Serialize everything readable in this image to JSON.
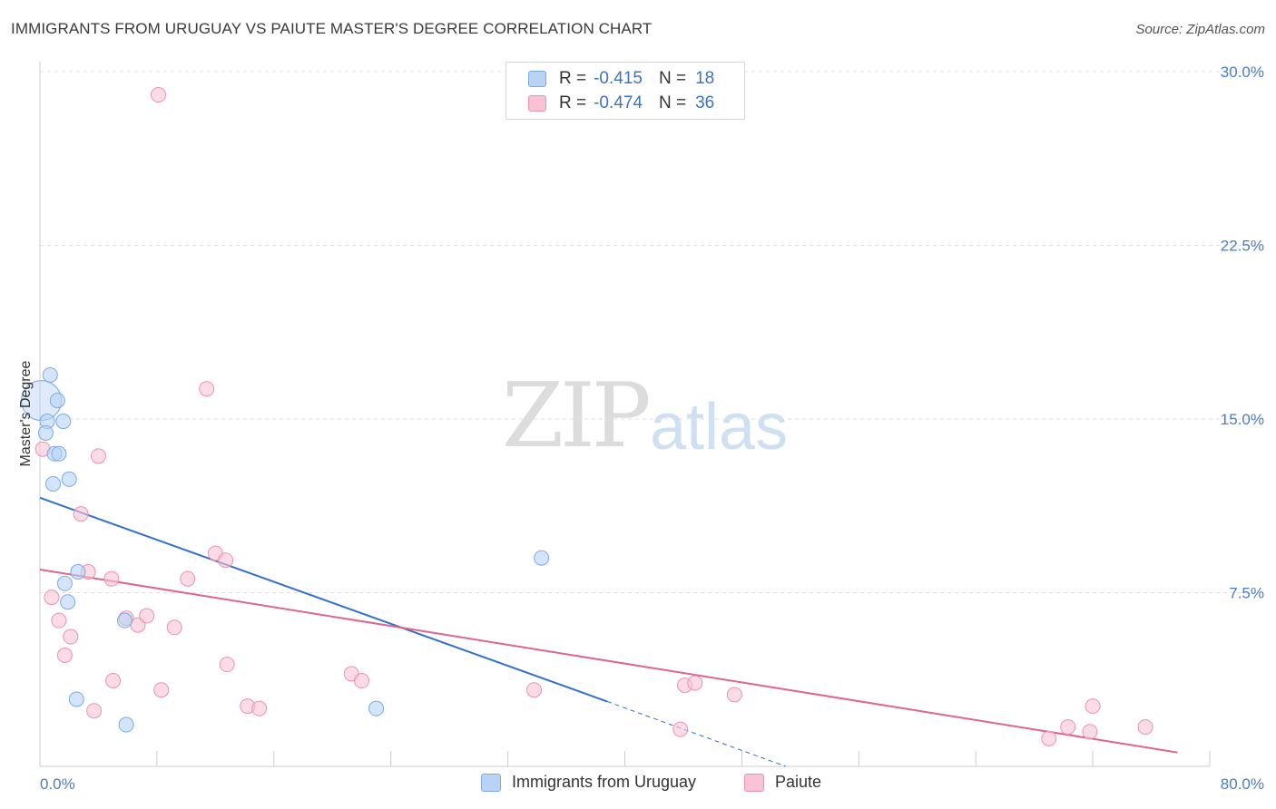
{
  "title": "IMMIGRANTS FROM URUGUAY VS PAIUTE MASTER'S DEGREE CORRELATION CHART",
  "source": "Source: ZipAtlas.com",
  "watermark": {
    "zip": "ZIP",
    "atlas": "atlas"
  },
  "colors": {
    "series1_fill": "#b8d3f5",
    "series1_stroke": "#7aaae6",
    "series1_line": "#3070d0",
    "series2_fill": "#f9c3d4",
    "series2_stroke": "#ec93b0",
    "series2_line": "#e0648e",
    "tick_text": "#4a7cc7",
    "grid": "#e2e2e2"
  },
  "legend_top": {
    "rows": [
      {
        "r_label": "R =",
        "r_value": "-0.415",
        "n_label": "N =",
        "n_value": "18"
      },
      {
        "r_label": "R =",
        "r_value": "-0.474",
        "n_label": "N =",
        "n_value": "36"
      }
    ]
  },
  "chart_data": {
    "type": "scatter",
    "title": "IMMIGRANTS FROM URUGUAY VS PAIUTE MASTER'S DEGREE CORRELATION CHART",
    "ylabel": "Master's Degree",
    "xlabel": "",
    "xlim": [
      0,
      80
    ],
    "ylim": [
      0,
      30
    ],
    "x_tick_labels": [
      {
        "value": 0,
        "label": "0.0%"
      },
      {
        "value": 80,
        "label": "80.0%"
      }
    ],
    "y_tick_labels": [
      {
        "value": 7.5,
        "label": "7.5%"
      },
      {
        "value": 15,
        "label": "15.0%"
      },
      {
        "value": 22.5,
        "label": "22.5%"
      },
      {
        "value": 30,
        "label": "30.0%"
      }
    ],
    "grid": true,
    "legend_position": "bottom",
    "series": [
      {
        "name": "Immigrants from Uruguay",
        "points": [
          [
            0.1,
            15.8
          ],
          [
            0.7,
            16.9
          ],
          [
            1.2,
            15.8
          ],
          [
            0.5,
            14.9
          ],
          [
            1.6,
            14.9
          ],
          [
            0.4,
            14.4
          ],
          [
            1.0,
            13.5
          ],
          [
            1.3,
            13.5
          ],
          [
            2.0,
            12.4
          ],
          [
            0.9,
            12.2
          ],
          [
            2.6,
            8.4
          ],
          [
            1.7,
            7.9
          ],
          [
            1.9,
            7.1
          ],
          [
            5.8,
            6.3
          ],
          [
            2.5,
            2.9
          ],
          [
            5.9,
            1.8
          ],
          [
            23.0,
            2.5
          ],
          [
            34.3,
            9.0
          ]
        ],
        "trend": {
          "x": [
            0,
            38.8
          ],
          "y": [
            11.6,
            2.8
          ]
        },
        "trend_extension": {
          "x": [
            38.8,
            51.0
          ],
          "y": [
            2.8,
            0.0
          ]
        }
      },
      {
        "name": "Paiute",
        "points": [
          [
            8.1,
            29.0
          ],
          [
            11.4,
            16.3
          ],
          [
            0.2,
            13.7
          ],
          [
            4.0,
            13.4
          ],
          [
            2.8,
            10.9
          ],
          [
            12.0,
            9.2
          ],
          [
            12.7,
            8.9
          ],
          [
            3.3,
            8.4
          ],
          [
            4.9,
            8.1
          ],
          [
            10.1,
            8.1
          ],
          [
            0.8,
            7.3
          ],
          [
            1.3,
            6.3
          ],
          [
            5.9,
            6.4
          ],
          [
            6.7,
            6.1
          ],
          [
            7.3,
            6.5
          ],
          [
            9.2,
            6.0
          ],
          [
            2.1,
            5.6
          ],
          [
            1.7,
            4.8
          ],
          [
            12.8,
            4.4
          ],
          [
            5.0,
            3.7
          ],
          [
            8.3,
            3.3
          ],
          [
            21.3,
            4.0
          ],
          [
            22.0,
            3.7
          ],
          [
            3.7,
            2.4
          ],
          [
            14.2,
            2.6
          ],
          [
            15.0,
            2.5
          ],
          [
            33.8,
            3.3
          ],
          [
            44.1,
            3.5
          ],
          [
            44.8,
            3.6
          ],
          [
            47.5,
            3.1
          ],
          [
            43.8,
            1.6
          ],
          [
            72.0,
            2.6
          ],
          [
            70.3,
            1.7
          ],
          [
            71.8,
            1.5
          ],
          [
            75.6,
            1.7
          ],
          [
            69.0,
            1.2
          ]
        ],
        "trend": {
          "x": [
            0,
            77.8
          ],
          "y": [
            8.5,
            0.6
          ]
        }
      }
    ]
  }
}
